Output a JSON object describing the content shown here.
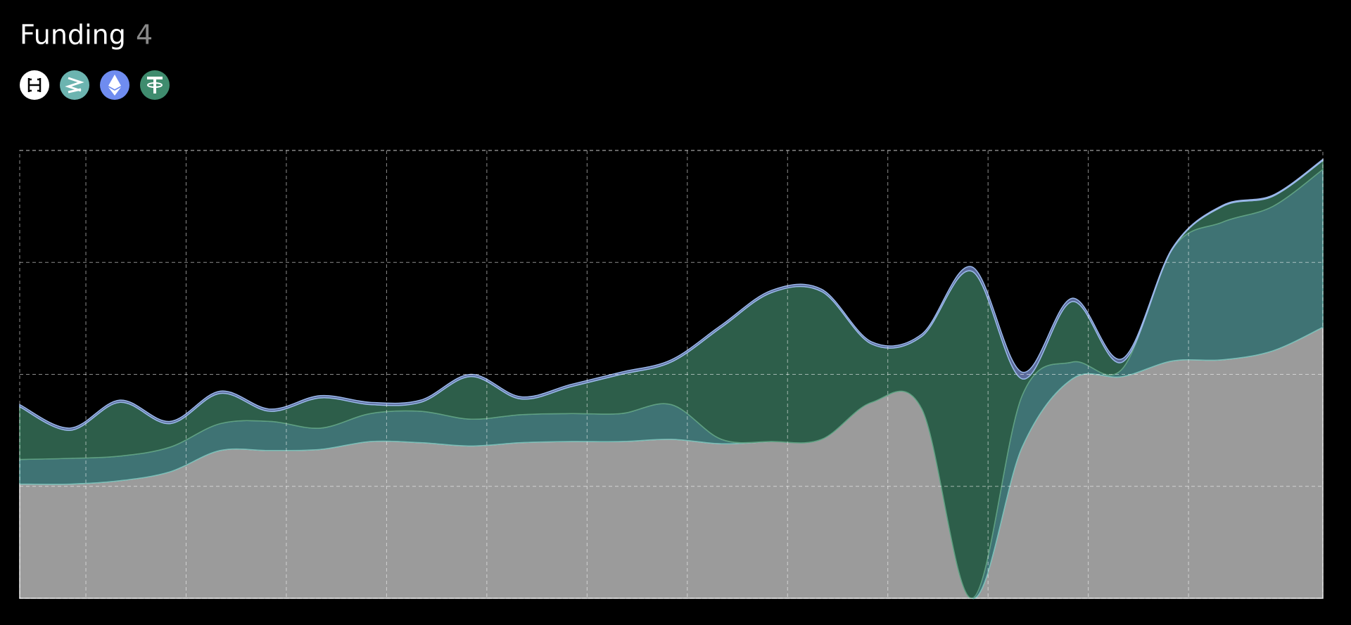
{
  "header": {
    "title": "Funding",
    "count": "4"
  },
  "chart_data": {
    "type": "stacked-area",
    "x": [
      0,
      1,
      2,
      3,
      4,
      5,
      6,
      7,
      8,
      9,
      10,
      11,
      12,
      13,
      14,
      15,
      16,
      17,
      18,
      19,
      20,
      21,
      22,
      23,
      24,
      25,
      26
    ],
    "xlim": [
      0,
      26
    ],
    "xticks": [
      1.32,
      3.32,
      5.32,
      7.32,
      9.32,
      11.32,
      13.32,
      15.32,
      17.32,
      19.32,
      21.32,
      23.32
    ],
    "ylim": [
      0,
      4
    ],
    "yticks": [
      0,
      1,
      2,
      3,
      4
    ],
    "grid": true,
    "series": [
      {
        "color": "#9b9b9b",
        "values": [
          1.02,
          1.02,
          1.05,
          1.13,
          1.32,
          1.32,
          1.33,
          1.4,
          1.39,
          1.36,
          1.39,
          1.4,
          1.4,
          1.42,
          1.38,
          1.4,
          1.42,
          1.75,
          1.69,
          0,
          1.35,
          1.96,
          1.98,
          2.12,
          2.13,
          2.21,
          2.42
        ]
      },
      {
        "color": "#3f7374",
        "values": [
          0.22,
          0.23,
          0.22,
          0.22,
          0.24,
          0.26,
          0.19,
          0.25,
          0.28,
          0.24,
          0.25,
          0.25,
          0.25,
          0.31,
          0.04,
          0,
          0,
          0,
          0,
          0,
          0.46,
          0.15,
          0.07,
          1.0,
          1.23,
          1.29,
          1.41
        ]
      },
      {
        "color": "#2d5e4a",
        "values": [
          0.47,
          0.25,
          0.48,
          0.21,
          0.27,
          0.09,
          0.27,
          0.08,
          0.08,
          0.38,
          0.14,
          0.24,
          0.35,
          0.38,
          1.0,
          1.33,
          1.32,
          0.52,
          0.65,
          2.92,
          0.15,
          0.54,
          0.06,
          0,
          0.14,
          0.09,
          0.08
        ]
      },
      {
        "color": "#5b6b9b",
        "values": [
          0.02,
          0.02,
          0.02,
          0.02,
          0.02,
          0.02,
          0.02,
          0.02,
          0.02,
          0.02,
          0.02,
          0.02,
          0.02,
          0.02,
          0.02,
          0.02,
          0.02,
          0.02,
          0.02,
          0.04,
          0.06,
          0.03,
          0.03,
          0.01,
          0.01,
          0.01,
          0.01
        ]
      }
    ]
  }
}
